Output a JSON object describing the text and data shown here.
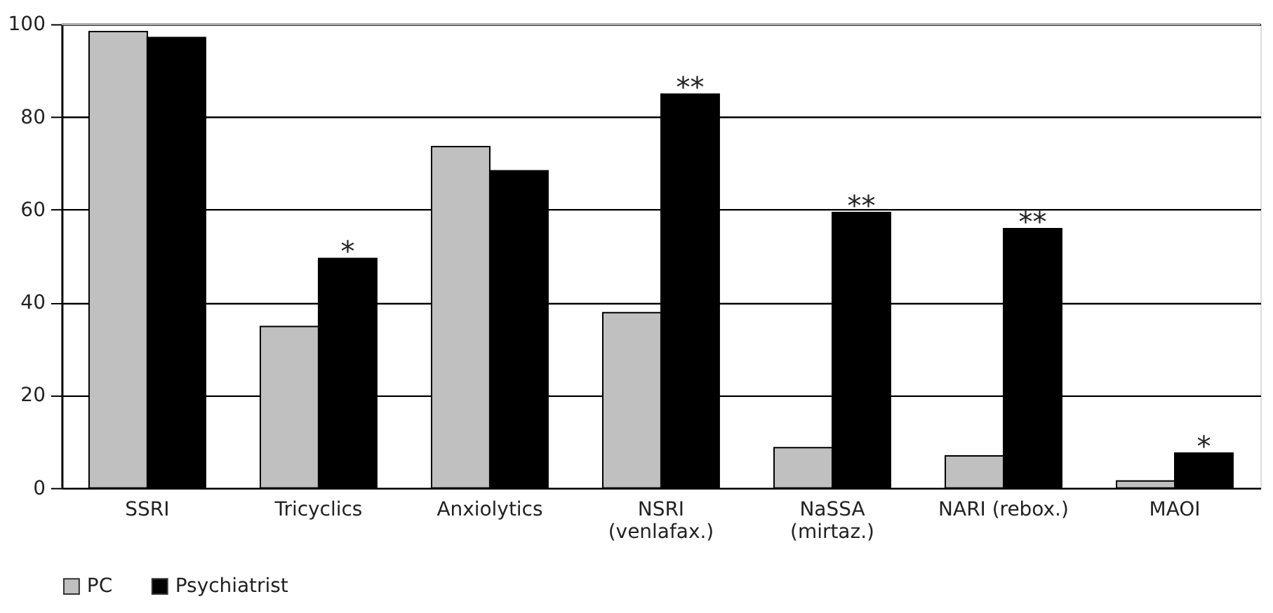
{
  "chart_data": {
    "type": "bar",
    "categories": [
      "SSRI",
      "Tricyclics",
      "Anxiolytics",
      "NSRI\n(venlafax.)",
      "NaSSA\n(mirtaz.)",
      "NARI (rebox.)",
      "MAOI"
    ],
    "series": [
      {
        "name": "PC",
        "color": "#c0c0c0",
        "values": [
          98.4,
          34.8,
          73.6,
          37.8,
          8.7,
          6.9,
          1.5
        ]
      },
      {
        "name": "Psychiatrist",
        "color": "#000000",
        "values": [
          97.1,
          49.5,
          68.4,
          84.9,
          59.4,
          55.9,
          7.5
        ]
      }
    ],
    "ylim": [
      0,
      100
    ],
    "yticks": [
      0,
      20,
      40,
      60,
      80,
      100
    ],
    "grid": "y",
    "legend": "bottom",
    "annotations": [
      {
        "text": "*",
        "x": "Tricyclics",
        "y": 49.5
      },
      {
        "text": "**",
        "x": "NSRI\n(venlafax.)",
        "y": 84.9
      },
      {
        "text": "**",
        "x": "NaSSA\n(mirtaz.)",
        "y": 59.4
      },
      {
        "text": "**",
        "x": "NARI (rebox.)",
        "y": 55.9
      },
      {
        "text": "*",
        "x": "MAOI",
        "y": 7.5
      }
    ]
  }
}
